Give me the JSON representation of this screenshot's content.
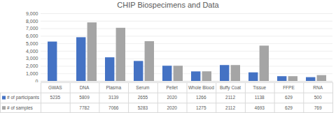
{
  "chart_data": {
    "type": "bar",
    "title": "CHIP Biospecimens and Data",
    "categories": [
      "GWAS",
      "DNA",
      "Plasma",
      "Serum",
      "Pellet",
      "Whole Blood",
      "Buffy Coat",
      "Tissue",
      "FFPE",
      "RNA"
    ],
    "series": [
      {
        "name": "# of participants",
        "color": "#4472c4",
        "values": [
          5235,
          5809,
          3139,
          2655,
          2020,
          1266,
          2112,
          1138,
          629,
          500
        ]
      },
      {
        "name": "# of samples",
        "color": "#a5a5a5",
        "values": [
          null,
          7782,
          7066,
          5283,
          2020,
          1275,
          2112,
          4693,
          629,
          769
        ]
      }
    ],
    "ylim": [
      0,
      9000
    ],
    "yticks": [
      0,
      1000,
      2000,
      3000,
      4000,
      5000,
      6000,
      7000,
      8000,
      9000
    ],
    "grid": true
  }
}
